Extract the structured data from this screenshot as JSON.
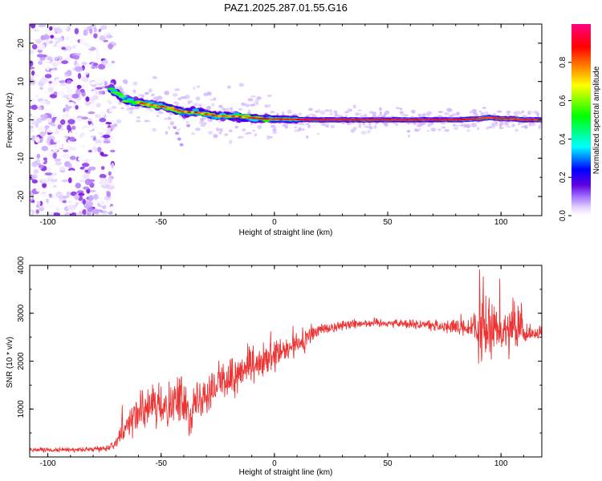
{
  "title": "PAZ1.2025.287.01.55.G16",
  "chart_data": [
    {
      "type": "heatmap",
      "xlabel": "Height of straight line (km)",
      "ylabel": "Frequency (Hz)",
      "xlim": [
        -108,
        118
      ],
      "ylim": [
        -25,
        25
      ],
      "xticks": [
        -100,
        -50,
        0,
        50,
        100
      ],
      "yticks": [
        -20,
        -10,
        0,
        10,
        20
      ],
      "colorbar": {
        "label": "Normalized spectral amplitude",
        "range": [
          0,
          1
        ],
        "ticks": [
          0,
          0.2,
          0.4,
          0.6,
          0.8
        ],
        "tick_labels": [
          "0.0",
          "0.2",
          "0.4",
          "0.6",
          "0.8"
        ],
        "colormap": [
          "#ffffff",
          "#c9a8ff",
          "#7000e0",
          "#0000ff",
          "#00ffff",
          "#00ff00",
          "#ffff00",
          "#ff8000",
          "#ff0000",
          "#ff0080"
        ]
      },
      "noise_region_x": [
        -108,
        -71
      ],
      "ridge": {
        "x": [
          -72,
          -65,
          -60,
          -55,
          -50,
          -45,
          -40,
          -35,
          -30,
          -25,
          -20,
          -15,
          -10,
          -5,
          0,
          10,
          20,
          40,
          60,
          80,
          90,
          95,
          100,
          105,
          110,
          118
        ],
        "freq": [
          8,
          5,
          4.5,
          4,
          3.5,
          3,
          2,
          2,
          1.5,
          1,
          1,
          0.8,
          0.5,
          0.3,
          0.2,
          0.1,
          0,
          0,
          0,
          0,
          0.3,
          0.6,
          0.3,
          0.3,
          0,
          0
        ]
      }
    },
    {
      "type": "line",
      "xlabel": "Height of straight line (km)",
      "ylabel": "SNR (10 * v/v)",
      "xlim": [
        -108,
        118
      ],
      "ylim": [
        0,
        4000
      ],
      "xticks": [
        -100,
        -50,
        0,
        50,
        100
      ],
      "yticks": [
        1000,
        2000,
        3000,
        4000
      ],
      "series": [
        {
          "name": "SNR",
          "color": "#ee3333",
          "x": [
            -108,
            -100,
            -90,
            -80,
            -75,
            -71,
            -68,
            -65,
            -60,
            -55,
            -50,
            -45,
            -40,
            -36,
            -32,
            -28,
            -25,
            -20,
            -15,
            -10,
            -5,
            0,
            5,
            10,
            15,
            18,
            20,
            25,
            30,
            40,
            50,
            60,
            70,
            80,
            85,
            90,
            93,
            96,
            100,
            105,
            108,
            112,
            118
          ],
          "y": [
            150,
            140,
            150,
            160,
            180,
            240,
            500,
            700,
            900,
            1000,
            1050,
            1150,
            1200,
            1000,
            1300,
            1450,
            1500,
            1650,
            1750,
            1850,
            1950,
            2100,
            2200,
            2350,
            2500,
            2600,
            2650,
            2700,
            2750,
            2800,
            2800,
            2780,
            2750,
            2700,
            2680,
            2650,
            2600,
            2650,
            2700,
            2650,
            2600,
            2550,
            2600
          ],
          "spread": [
            40,
            40,
            40,
            40,
            50,
            60,
            200,
            250,
            300,
            350,
            400,
            400,
            450,
            500,
            450,
            450,
            400,
            380,
            350,
            330,
            300,
            300,
            280,
            250,
            220,
            150,
            120,
            100,
            90,
            80,
            80,
            90,
            110,
            150,
            200,
            500,
            900,
            700,
            400,
            600,
            500,
            150,
            120
          ]
        }
      ]
    }
  ]
}
